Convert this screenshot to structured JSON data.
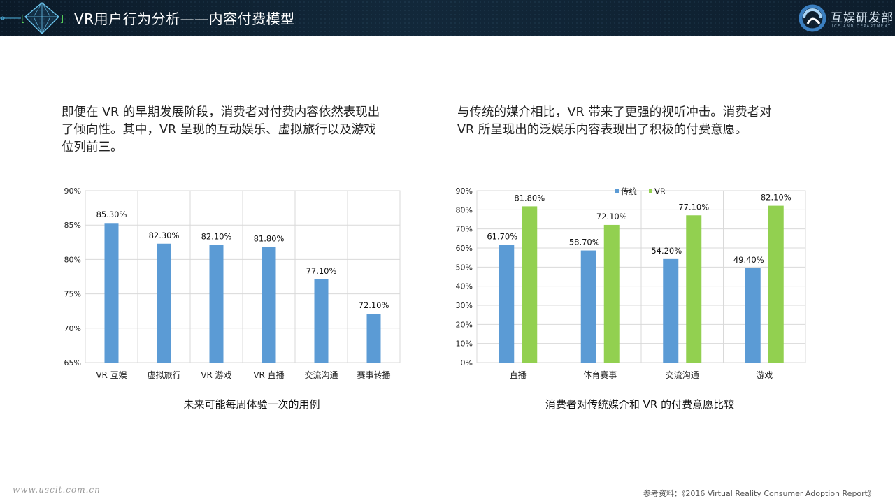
{
  "header": {
    "title": "VR用户行为分析——内容付费模型",
    "logo_text": "互娱研发部",
    "logo_sub": "ICE AND DEPARTMENT"
  },
  "left_text": {
    "lines": [
      "即便在 VR 的早期发展阶段，消费者对付费内容依然表现出",
      "了倾向性。其中，VR 呈现的互动娱乐、虚拟旅行以及游戏",
      "位列前三。"
    ]
  },
  "right_text": {
    "lines": [
      "与传统的媒介相比，VR 带来了更强的视听冲击。消费者对",
      "VR 所呈现出的泛娱乐内容表现出了积极的付费意愿。"
    ]
  },
  "chart_data": [
    {
      "type": "bar",
      "title": "未来可能每周体验一次的用例",
      "categories": [
        "VR 互娱",
        "虚拟旅行",
        "VR 游戏",
        "VR 直播",
        "交流沟通",
        "赛事转播"
      ],
      "values": [
        85.3,
        82.3,
        82.1,
        81.8,
        77.1,
        72.1
      ],
      "data_labels": [
        "85.30%",
        "82.30%",
        "82.10%",
        "81.80%",
        "77.10%",
        "72.10%"
      ],
      "y_ticks": [
        "65%",
        "70%",
        "75%",
        "80%",
        "85%",
        "90%"
      ],
      "ylim": [
        65,
        90
      ],
      "grid": true,
      "color": "#5b9bd5"
    },
    {
      "type": "bar",
      "title": "消费者对传统媒介和 VR 的付费意愿比较",
      "categories": [
        "直播",
        "体育赛事",
        "交流沟通",
        "游戏"
      ],
      "series": [
        {
          "name": "传统",
          "values": [
            61.7,
            58.7,
            54.2,
            49.4
          ],
          "data_labels": [
            "61.70%",
            "58.70%",
            "54.20%",
            "49.40%"
          ],
          "color": "#5b9bd5"
        },
        {
          "name": "VR",
          "values": [
            81.8,
            72.1,
            77.1,
            82.1
          ],
          "data_labels": [
            "81.80%",
            "72.10%",
            "77.10%",
            "82.10%"
          ],
          "color": "#92d050"
        }
      ],
      "y_ticks": [
        "0%",
        "10%",
        "20%",
        "30%",
        "40%",
        "50%",
        "60%",
        "70%",
        "80%",
        "90%"
      ],
      "ylim": [
        0,
        90
      ],
      "grid": true,
      "legend": "top-center"
    }
  ],
  "footer": {
    "website": "www.uscit.com.cn",
    "source": "参考资料：《2016 Virtual Reality Consumer Adoption Report》"
  }
}
